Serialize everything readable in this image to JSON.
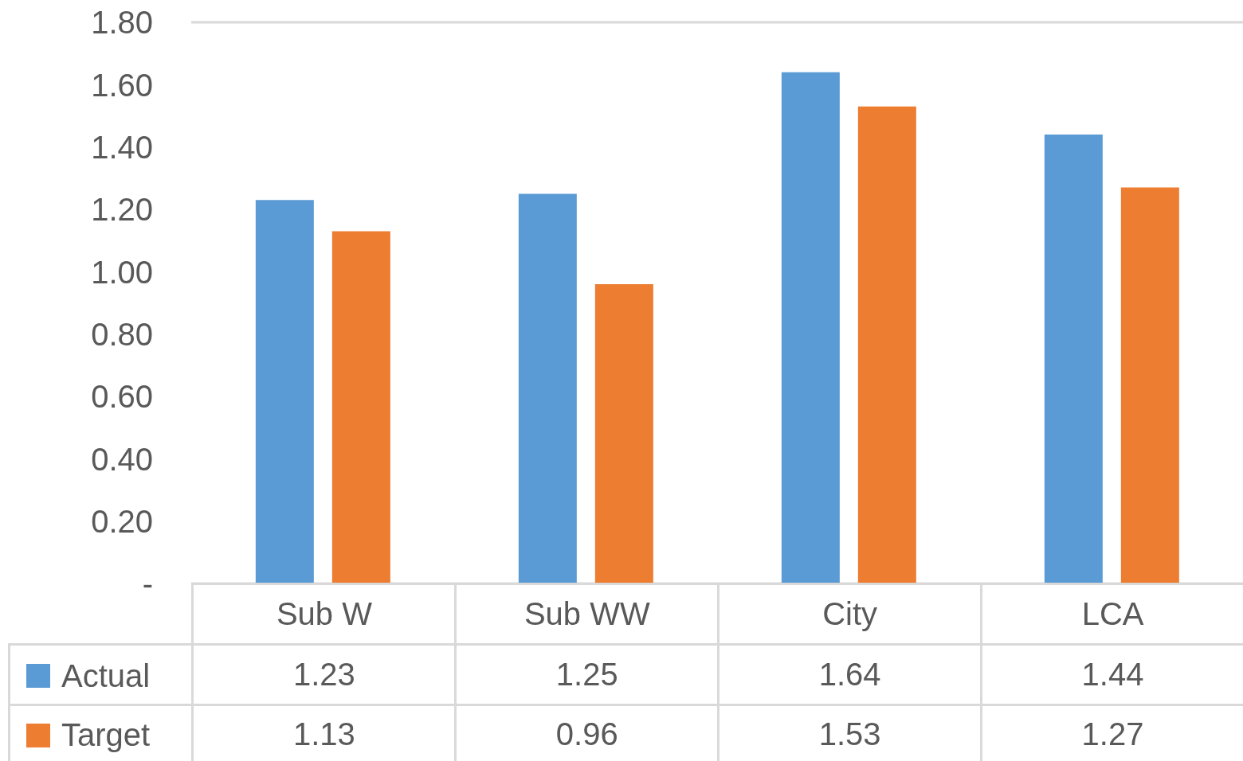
{
  "chart_data": {
    "type": "bar",
    "categories": [
      "Sub W",
      "Sub WW",
      "City",
      "LCA"
    ],
    "series": [
      {
        "name": "Actual",
        "color": "#5b9bd5",
        "values": [
          1.23,
          1.25,
          1.64,
          1.44
        ]
      },
      {
        "name": "Target",
        "color": "#ed7d31",
        "values": [
          1.13,
          0.96,
          1.53,
          1.27
        ]
      }
    ],
    "ylim": [
      0,
      1.8
    ],
    "yticks": [
      {
        "value": 0,
        "label": "-"
      },
      {
        "value": 0.2,
        "label": "0.20"
      },
      {
        "value": 0.4,
        "label": "0.40"
      },
      {
        "value": 0.6,
        "label": "0.60"
      },
      {
        "value": 0.8,
        "label": "0.80"
      },
      {
        "value": 1,
        "label": "1.00"
      },
      {
        "value": 1.2,
        "label": "1.20"
      },
      {
        "value": 1.4,
        "label": "1.40"
      },
      {
        "value": 1.6,
        "label": "1.60"
      },
      {
        "value": 1.8,
        "label": "1.80"
      }
    ],
    "grid": "y",
    "legend": "bottom",
    "data_labels": true
  }
}
